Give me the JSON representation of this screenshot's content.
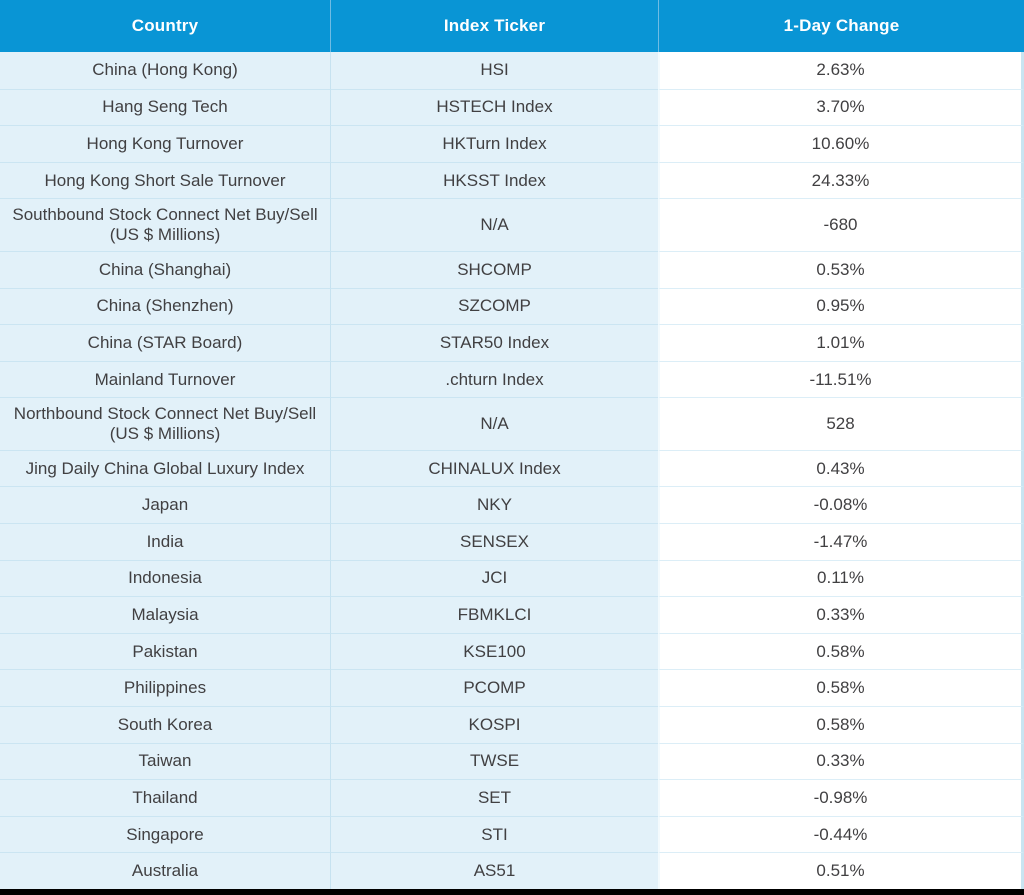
{
  "chart_data": {
    "type": "table",
    "columns": [
      "Country",
      "Index Ticker",
      "1-Day Change"
    ],
    "rows": [
      [
        "China (Hong Kong)",
        "HSI",
        "2.63%"
      ],
      [
        "Hang Seng Tech",
        "HSTECH Index",
        "3.70%"
      ],
      [
        "Hong Kong Turnover",
        "HKTurn Index",
        "10.60%"
      ],
      [
        "Hong Kong Short Sale Turnover",
        "HKSST Index",
        "24.33%"
      ],
      [
        "Southbound Stock Connect Net Buy/Sell (US $ Millions)",
        "N/A",
        "-680"
      ],
      [
        "China (Shanghai)",
        "SHCOMP",
        "0.53%"
      ],
      [
        "China (Shenzhen)",
        "SZCOMP",
        "0.95%"
      ],
      [
        "China (STAR Board)",
        "STAR50 Index",
        "1.01%"
      ],
      [
        "Mainland Turnover",
        ".chturn Index",
        "-11.51%"
      ],
      [
        "Northbound Stock Connect Net Buy/Sell (US $ Millions)",
        "N/A",
        "528"
      ],
      [
        "Jing Daily China Global Luxury Index",
        "CHINALUX Index",
        "0.43%"
      ],
      [
        "Japan",
        "NKY",
        "-0.08%"
      ],
      [
        "India",
        "SENSEX",
        "-1.47%"
      ],
      [
        "Indonesia",
        "JCI",
        "0.11%"
      ],
      [
        "Malaysia",
        "FBMKLCI",
        "0.33%"
      ],
      [
        "Pakistan",
        "KSE100",
        "0.58%"
      ],
      [
        "Philippines",
        "PCOMP",
        "0.58%"
      ],
      [
        "South Korea",
        "KOSPI",
        "0.58%"
      ],
      [
        "Taiwan",
        "TWSE",
        "0.33%"
      ],
      [
        "Thailand",
        "SET",
        "-0.98%"
      ],
      [
        "Singapore",
        "STI",
        "-0.44%"
      ],
      [
        "Australia",
        "AS51",
        "0.51%"
      ]
    ],
    "layout": {
      "header_position": "top",
      "alignment": "center",
      "grid": "horizontal-separators"
    }
  },
  "colors": {
    "header_bg": "#0995D5",
    "header_text": "#FFFFFF",
    "row_bg_blue": "#E2F1F9",
    "row_bg_white": "#FFFFFF",
    "separator_blue": "#CBE5F2",
    "separator_light": "#DCEEF7",
    "body_text": "#414042",
    "bottom_bar": "#000000"
  }
}
